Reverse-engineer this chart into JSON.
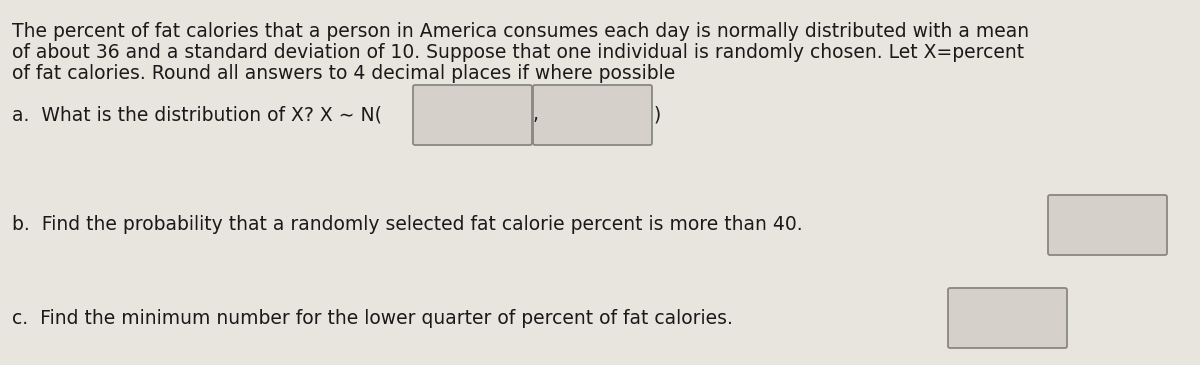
{
  "background_color": "#e8e4de",
  "text_color": "#1a1a1a",
  "paragraph_line1": "The percent of fat calories that a person in America consumes each day is normally distributed with a mean",
  "paragraph_line2": "of about 36 and a standard deviation of 10. Suppose that one individual is randomly chosen. Let X=percent",
  "paragraph_line3": "of fat calories. Round all answers to 4 decimal places if where possible",
  "line_a_text": "a.  What is the distribution of X? X ∼ N(",
  "line_b_text": "b.  Find the probability that a randomly selected fat calorie percent is more than 40.",
  "line_c_text": "c.  Find the minimum number for the lower quarter of percent of fat calories.",
  "box_fill_color": "#d5d0c9",
  "box_edge_color": "#888880",
  "font_size": 13.5,
  "fig_width": 12.0,
  "fig_height": 3.65,
  "dpi": 100
}
